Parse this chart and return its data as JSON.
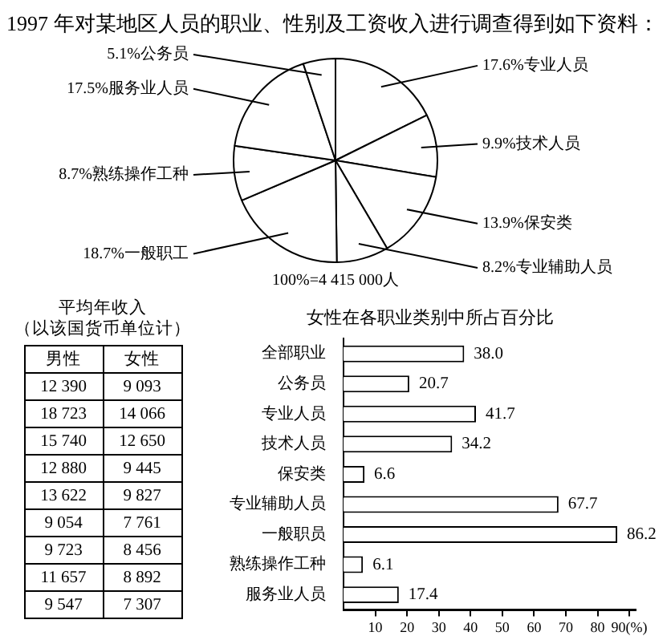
{
  "chart_data": [
    {
      "type": "pie",
      "title": "1997 年对某地区人员的职业、性别及工资收入进行调查得到如下资料：",
      "categories": [
        "专业人员",
        "技术人员",
        "保安类",
        "专业辅助人员",
        "一般职工",
        "熟练操作工种",
        "服务业人员",
        "公务员"
      ],
      "values": [
        17.6,
        9.9,
        13.9,
        8.2,
        18.7,
        8.7,
        17.5,
        5.1
      ],
      "value_labels": [
        "17.6%",
        "9.9%",
        "13.9%",
        "8.2%",
        "18.7%",
        "8.7%",
        "17.5%",
        "5.1%"
      ],
      "colors": [
        "#ffffff",
        "#ffffff",
        "#ffffff",
        "#ffffff",
        "#ffffff",
        "#ffffff",
        "#ffffff",
        "#ffffff"
      ],
      "annotations": [
        "100%=4 415 000人"
      ],
      "legend": false
    },
    {
      "type": "other",
      "title": "平均年收入",
      "subtitle": "（以该国货币单位计）",
      "annotations": [
        "男性",
        "女性",
        "12 390",
        "9 093",
        "18 723",
        "14 066",
        "15 740",
        "12 650",
        "12 880",
        "9 445",
        "13 622",
        "9 827",
        "9 054",
        "7 761",
        "9 723",
        "8 456",
        "11 657",
        "8 892",
        "9 547",
        "7 307"
      ]
    },
    {
      "type": "bar",
      "orientation": "horizontal",
      "title": "女性在各职业类别中所占百分比",
      "categories": [
        "全部职业",
        "公务员",
        "专业人员",
        "技术人员",
        "保安类",
        "专业辅助人员",
        "一般职员",
        "熟练操作工种",
        "服务业人员"
      ],
      "values": [
        38.0,
        20.7,
        41.7,
        34.2,
        6.6,
        67.7,
        86.2,
        6.1,
        17.4
      ],
      "value_labels": [
        "38.0",
        "20.7",
        "41.7",
        "34.2",
        "6.6",
        "67.7",
        "86.2",
        "6.1",
        "17.4"
      ],
      "color": "#ffffff",
      "xlim": [
        0,
        92
      ],
      "xticks": [
        10,
        20,
        30,
        40,
        50,
        60,
        70,
        80,
        {
          "value": 90,
          "label": "90(%)"
        }
      ],
      "grid": false,
      "legend": false
    }
  ]
}
